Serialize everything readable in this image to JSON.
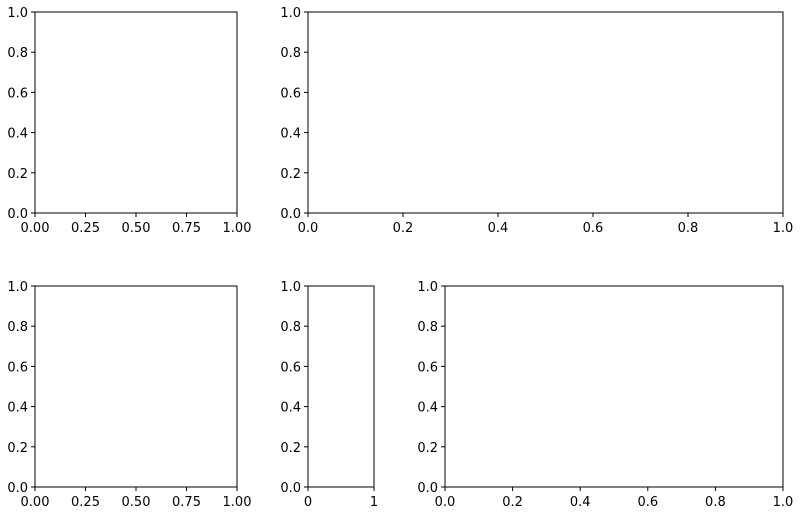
{
  "chart_data": [
    {
      "type": "line",
      "xlim": [
        0,
        1
      ],
      "ylim": [
        0,
        1
      ],
      "xticks": [
        {
          "value": 0,
          "label": "0.00"
        },
        {
          "value": 0.25,
          "label": "0.25"
        },
        {
          "value": 0.5,
          "label": "0.50"
        },
        {
          "value": 0.75,
          "label": "0.75"
        },
        {
          "value": 1,
          "label": "1.00"
        }
      ],
      "yticks": [
        {
          "value": 0,
          "label": "0.0"
        },
        {
          "value": 0.2,
          "label": "0.2"
        },
        {
          "value": 0.4,
          "label": "0.4"
        },
        {
          "value": 0.6,
          "label": "0.6"
        },
        {
          "value": 0.8,
          "label": "0.8"
        },
        {
          "value": 1,
          "label": "1.0"
        }
      ]
    },
    {
      "type": "line",
      "xlim": [
        0,
        1
      ],
      "ylim": [
        0,
        1
      ],
      "xticks": [
        {
          "value": 0,
          "label": "0.0"
        },
        {
          "value": 0.2,
          "label": "0.2"
        },
        {
          "value": 0.4,
          "label": "0.4"
        },
        {
          "value": 0.6,
          "label": "0.6"
        },
        {
          "value": 0.8,
          "label": "0.8"
        },
        {
          "value": 1,
          "label": "1.0"
        }
      ],
      "yticks": [
        {
          "value": 0,
          "label": "0.0"
        },
        {
          "value": 0.2,
          "label": "0.2"
        },
        {
          "value": 0.4,
          "label": "0.4"
        },
        {
          "value": 0.6,
          "label": "0.6"
        },
        {
          "value": 0.8,
          "label": "0.8"
        },
        {
          "value": 1,
          "label": "1.0"
        }
      ]
    },
    {
      "type": "line",
      "xlim": [
        0,
        1
      ],
      "ylim": [
        0,
        1
      ],
      "xticks": [
        {
          "value": 0,
          "label": "0.00"
        },
        {
          "value": 0.25,
          "label": "0.25"
        },
        {
          "value": 0.5,
          "label": "0.50"
        },
        {
          "value": 0.75,
          "label": "0.75"
        },
        {
          "value": 1,
          "label": "1.00"
        }
      ],
      "yticks": [
        {
          "value": 0,
          "label": "0.0"
        },
        {
          "value": 0.2,
          "label": "0.2"
        },
        {
          "value": 0.4,
          "label": "0.4"
        },
        {
          "value": 0.6,
          "label": "0.6"
        },
        {
          "value": 0.8,
          "label": "0.8"
        },
        {
          "value": 1,
          "label": "1.0"
        }
      ]
    },
    {
      "type": "line",
      "xlim": [
        0,
        1
      ],
      "ylim": [
        0,
        1
      ],
      "xticks": [
        0,
        1
      ],
      "yticks": [
        {
          "value": 0,
          "label": "0.0"
        },
        {
          "value": 0.2,
          "label": "0.2"
        },
        {
          "value": 0.4,
          "label": "0.4"
        },
        {
          "value": 0.6,
          "label": "0.6"
        },
        {
          "value": 0.8,
          "label": "0.8"
        },
        {
          "value": 1,
          "label": "1.0"
        }
      ]
    },
    {
      "type": "line",
      "xlim": [
        0,
        1
      ],
      "ylim": [
        0,
        1
      ],
      "xticks": [
        {
          "value": 0,
          "label": "0.0"
        },
        {
          "value": 0.2,
          "label": "0.2"
        },
        {
          "value": 0.4,
          "label": "0.4"
        },
        {
          "value": 0.6,
          "label": "0.6"
        },
        {
          "value": 0.8,
          "label": "0.8"
        },
        {
          "value": 1,
          "label": "1.0"
        }
      ],
      "yticks": [
        {
          "value": 0,
          "label": "0.0"
        },
        {
          "value": 0.2,
          "label": "0.2"
        },
        {
          "value": 0.4,
          "label": "0.4"
        },
        {
          "value": 0.6,
          "label": "0.6"
        },
        {
          "value": 0.8,
          "label": "0.8"
        },
        {
          "value": 1,
          "label": "1.0"
        }
      ]
    }
  ]
}
